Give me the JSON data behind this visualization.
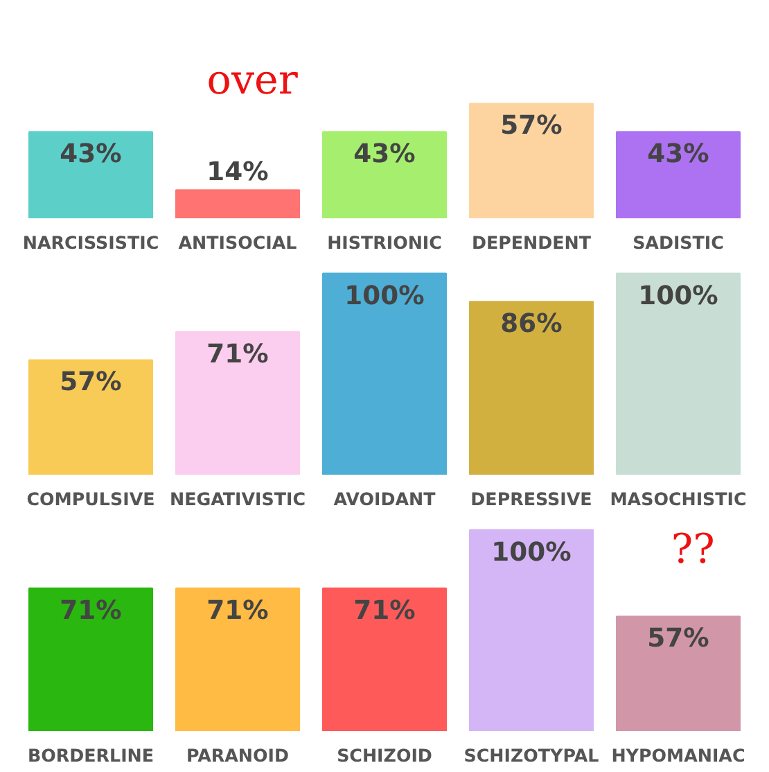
{
  "chart_data": [
    {
      "type": "bar",
      "categories": [
        "NARCISSISTIC",
        "ANTISOCIAL",
        "HISTRIONIC",
        "DEPENDENT",
        "SADISTIC"
      ],
      "values": [
        43,
        14,
        43,
        57,
        43
      ],
      "colors": [
        "#5ccfc9",
        "#ff7373",
        "#a6ef6e",
        "#fdd4a0",
        "#ad72f2"
      ],
      "value_labels": [
        "43%",
        "14%",
        "43%",
        "57%",
        "43%"
      ],
      "tick_labels": "x",
      "annotations": [
        "over"
      ]
    },
    {
      "type": "bar",
      "categories": [
        "COMPULSIVE",
        "NEGATIVISTIC",
        "AVOIDANT",
        "DEPRESSIVE",
        "MASOCHISTIC"
      ],
      "values": [
        57,
        71,
        100,
        86,
        100
      ],
      "colors": [
        "#f8cb56",
        "#fbcdee",
        "#4eaed5",
        "#d2b040",
        "#c8ddd4"
      ],
      "value_labels": [
        "57%",
        "71%",
        "100%",
        "86%",
        "100%"
      ],
      "tick_labels": "x"
    },
    {
      "type": "bar",
      "categories": [
        "BORDERLINE",
        "PARANOID",
        "SCHIZOID",
        "SCHIZOTYPAL",
        "HYPOMANIAC"
      ],
      "values": [
        71,
        71,
        71,
        100,
        57
      ],
      "colors": [
        "#2ab70f",
        "#ffbb44",
        "#ff5a5a",
        "#d4b5f6",
        "#d197a8"
      ],
      "value_labels": [
        "71%",
        "71%",
        "71%",
        "100%",
        "57%"
      ],
      "tick_labels": "x",
      "annotations": [
        "??"
      ]
    }
  ]
}
